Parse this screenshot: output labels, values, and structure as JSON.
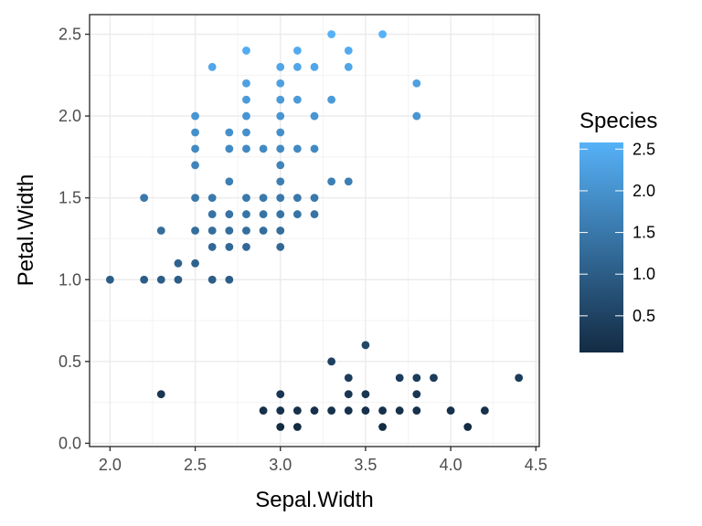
{
  "chart_data": {
    "type": "scatter",
    "xlabel": "Sepal.Width",
    "ylabel": "Petal.Width",
    "xlim": [
      1.88,
      4.52
    ],
    "ylim": [
      -0.02,
      2.62
    ],
    "xticks": [
      2.0,
      2.5,
      3.0,
      3.5,
      4.0,
      4.5
    ],
    "xtick_labels": [
      "2.0",
      "2.5",
      "3.0",
      "3.5",
      "4.0",
      "4.5"
    ],
    "yticks": [
      0.0,
      0.5,
      1.0,
      1.5,
      2.0,
      2.5
    ],
    "ytick_labels": [
      "0.0",
      "0.5",
      "1.0",
      "1.5",
      "2.0",
      "2.5"
    ],
    "grid": true,
    "color_variable": "Petal.Width",
    "color_scale": {
      "low": "#132B43",
      "high": "#56B1F7",
      "min": 0.1,
      "max": 2.5
    },
    "legend": {
      "title": "Species",
      "placement": "right",
      "breaks": [
        0.5,
        1.0,
        1.5,
        2.0,
        2.5
      ],
      "labels": [
        "0.5",
        "1.0",
        "1.5",
        "2.0",
        "2.5"
      ]
    },
    "points": [
      [
        3.6,
        2.5
      ],
      [
        3.3,
        2.5
      ],
      [
        2.8,
        2.4
      ],
      [
        3.1,
        2.4
      ],
      [
        3.4,
        2.4
      ],
      [
        2.6,
        2.3
      ],
      [
        3.0,
        2.3
      ],
      [
        3.1,
        2.3
      ],
      [
        3.2,
        2.3
      ],
      [
        3.4,
        2.3
      ],
      [
        2.8,
        2.2
      ],
      [
        3.0,
        2.2
      ],
      [
        3.8,
        2.2
      ],
      [
        2.8,
        2.1
      ],
      [
        3.0,
        2.1
      ],
      [
        3.1,
        2.1
      ],
      [
        3.3,
        2.1
      ],
      [
        2.5,
        2.0
      ],
      [
        2.8,
        2.0
      ],
      [
        3.0,
        2.0
      ],
      [
        3.2,
        2.0
      ],
      [
        3.8,
        2.0
      ],
      [
        2.5,
        1.9
      ],
      [
        2.7,
        1.9
      ],
      [
        2.8,
        1.9
      ],
      [
        3.0,
        1.9
      ],
      [
        2.5,
        1.8
      ],
      [
        2.7,
        1.8
      ],
      [
        2.8,
        1.8
      ],
      [
        2.9,
        1.8
      ],
      [
        3.0,
        1.8
      ],
      [
        3.1,
        1.8
      ],
      [
        3.2,
        1.8
      ],
      [
        2.5,
        1.7
      ],
      [
        3.0,
        1.7
      ],
      [
        2.7,
        1.6
      ],
      [
        3.0,
        1.6
      ],
      [
        3.3,
        1.6
      ],
      [
        3.4,
        1.6
      ],
      [
        2.2,
        1.5
      ],
      [
        2.5,
        1.5
      ],
      [
        2.6,
        1.5
      ],
      [
        2.8,
        1.5
      ],
      [
        2.9,
        1.5
      ],
      [
        3.0,
        1.5
      ],
      [
        3.1,
        1.5
      ],
      [
        3.2,
        1.5
      ],
      [
        2.6,
        1.4
      ],
      [
        2.7,
        1.4
      ],
      [
        2.8,
        1.4
      ],
      [
        2.9,
        1.4
      ],
      [
        3.0,
        1.4
      ],
      [
        3.1,
        1.4
      ],
      [
        3.2,
        1.4
      ],
      [
        2.3,
        1.3
      ],
      [
        2.5,
        1.3
      ],
      [
        2.6,
        1.3
      ],
      [
        2.7,
        1.3
      ],
      [
        2.8,
        1.3
      ],
      [
        2.9,
        1.3
      ],
      [
        3.0,
        1.3
      ],
      [
        2.6,
        1.2
      ],
      [
        2.7,
        1.2
      ],
      [
        2.8,
        1.2
      ],
      [
        3.0,
        1.2
      ],
      [
        2.4,
        1.1
      ],
      [
        2.5,
        1.1
      ],
      [
        2.0,
        1.0
      ],
      [
        2.2,
        1.0
      ],
      [
        2.3,
        1.0
      ],
      [
        2.4,
        1.0
      ],
      [
        2.6,
        1.0
      ],
      [
        2.7,
        1.0
      ],
      [
        3.5,
        0.6
      ],
      [
        3.3,
        0.5
      ],
      [
        3.4,
        0.4
      ],
      [
        3.7,
        0.4
      ],
      [
        3.8,
        0.4
      ],
      [
        3.9,
        0.4
      ],
      [
        4.4,
        0.4
      ],
      [
        2.3,
        0.3
      ],
      [
        3.0,
        0.3
      ],
      [
        3.4,
        0.3
      ],
      [
        3.5,
        0.3
      ],
      [
        3.8,
        0.3
      ],
      [
        2.9,
        0.2
      ],
      [
        3.0,
        0.2
      ],
      [
        3.1,
        0.2
      ],
      [
        3.2,
        0.2
      ],
      [
        3.3,
        0.2
      ],
      [
        3.4,
        0.2
      ],
      [
        3.5,
        0.2
      ],
      [
        3.6,
        0.2
      ],
      [
        3.7,
        0.2
      ],
      [
        3.8,
        0.2
      ],
      [
        4.0,
        0.2
      ],
      [
        4.2,
        0.2
      ],
      [
        3.0,
        0.1
      ],
      [
        3.1,
        0.1
      ],
      [
        3.6,
        0.1
      ],
      [
        4.1,
        0.1
      ]
    ]
  }
}
